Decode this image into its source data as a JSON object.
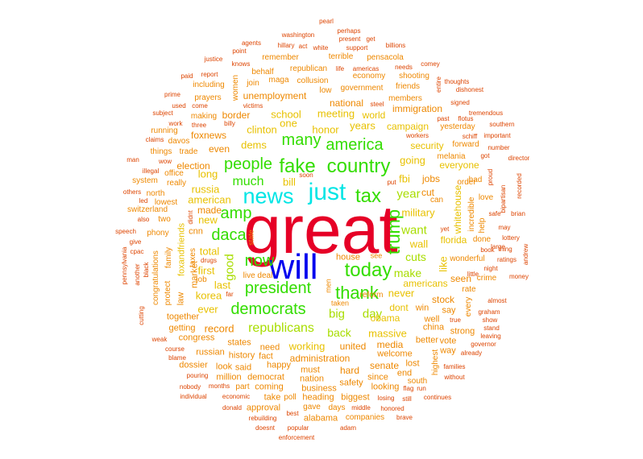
{
  "colors": {
    "red": "#e60026",
    "blue": "#0000ee",
    "cyan": "#00e5e5",
    "green": "#33dd00",
    "yellow_green": "#a8dd00",
    "gold": "#e8c100",
    "orange": "#ee8800",
    "dark_orange": "#dd4400"
  },
  "words": [
    {
      "text": "great",
      "tier": "red"
    },
    {
      "text": "will",
      "tier": "blue"
    },
    {
      "text": "news",
      "tier": "cyan"
    },
    {
      "text": "just",
      "tier": "cyan"
    },
    {
      "text": "fake",
      "tier": "green"
    },
    {
      "text": "country",
      "tier": "green"
    },
    {
      "text": "today",
      "tier": "green"
    },
    {
      "text": "tax",
      "tier": "green"
    },
    {
      "text": "thank",
      "tier": "green"
    },
    {
      "text": "trump",
      "tier": "green"
    },
    {
      "text": "democrats",
      "tier": "green"
    },
    {
      "text": "president",
      "tier": "green"
    },
    {
      "text": "america",
      "tier": "green"
    },
    {
      "text": "people",
      "tier": "green"
    },
    {
      "text": "many",
      "tier": "green"
    },
    {
      "text": "amp",
      "tier": "green"
    },
    {
      "text": "daca",
      "tier": "green"
    },
    {
      "text": "now",
      "tier": "green"
    },
    {
      "text": "much",
      "tier": "green"
    },
    {
      "text": "year",
      "tier": "yellow_green"
    },
    {
      "text": "big",
      "tier": "yellow_green"
    },
    {
      "text": "good",
      "tier": "yellow_green"
    },
    {
      "text": "want",
      "tier": "yellow_green"
    },
    {
      "text": "day",
      "tier": "yellow_green"
    },
    {
      "text": "make",
      "tier": "yellow_green"
    },
    {
      "text": "republicans",
      "tier": "yellow_green"
    },
    {
      "text": "cuts",
      "tier": "yellow_green"
    },
    {
      "text": "back",
      "tier": "yellow_green"
    },
    {
      "text": "military",
      "tier": "gold"
    },
    {
      "text": "working",
      "tier": "gold"
    },
    {
      "text": "massive",
      "tier": "gold"
    },
    {
      "text": "honor",
      "tier": "gold"
    },
    {
      "text": "dems",
      "tier": "gold"
    },
    {
      "text": "one",
      "tier": "gold"
    },
    {
      "text": "bill",
      "tier": "gold"
    },
    {
      "text": "fbi",
      "tier": "gold"
    },
    {
      "text": "going",
      "tier": "gold"
    },
    {
      "text": "jobs",
      "tier": "orange"
    },
    {
      "text": "cut",
      "tier": "orange"
    },
    {
      "text": "never",
      "tier": "gold"
    },
    {
      "text": "wall",
      "tier": "gold"
    },
    {
      "text": "like",
      "tier": "gold"
    },
    {
      "text": "florida",
      "tier": "gold"
    },
    {
      "text": "americans",
      "tier": "gold"
    },
    {
      "text": "school",
      "tier": "gold"
    },
    {
      "text": "meeting",
      "tier": "gold"
    },
    {
      "text": "clinton",
      "tier": "gold"
    },
    {
      "text": "years",
      "tier": "gold"
    },
    {
      "text": "world",
      "tier": "gold"
    },
    {
      "text": "campaign",
      "tier": "gold"
    },
    {
      "text": "security",
      "tier": "gold"
    },
    {
      "text": "everyone",
      "tier": "gold"
    },
    {
      "text": "american",
      "tier": "gold"
    },
    {
      "text": "long",
      "tier": "gold"
    },
    {
      "text": "russia",
      "tier": "gold"
    },
    {
      "text": "total",
      "tier": "gold"
    },
    {
      "text": "first",
      "tier": "gold"
    },
    {
      "text": "last",
      "tier": "gold"
    },
    {
      "text": "new",
      "tier": "gold"
    },
    {
      "text": "korea",
      "tier": "gold"
    },
    {
      "text": "ever",
      "tier": "gold"
    },
    {
      "text": "record",
      "tier": "orange"
    },
    {
      "text": "obama",
      "tier": "gold"
    },
    {
      "text": "dont",
      "tier": "gold"
    },
    {
      "text": "whitehouse",
      "tier": "gold"
    },
    {
      "text": "unemployment",
      "tier": "orange"
    },
    {
      "text": "national",
      "tier": "orange"
    },
    {
      "text": "immigration",
      "tier": "orange"
    },
    {
      "text": "foxnews",
      "tier": "orange"
    },
    {
      "text": "election",
      "tier": "orange"
    },
    {
      "text": "even",
      "tier": "orange"
    },
    {
      "text": "border",
      "tier": "orange"
    },
    {
      "text": "made",
      "tier": "orange"
    },
    {
      "text": "foxandfriends",
      "tier": "gold"
    },
    {
      "text": "market",
      "tier": "orange"
    },
    {
      "text": "house",
      "tier": "orange"
    },
    {
      "text": "reform",
      "tier": "orange"
    },
    {
      "text": "live deal",
      "tier": "orange"
    },
    {
      "text": "united",
      "tier": "orange"
    },
    {
      "text": "administration",
      "tier": "orange"
    },
    {
      "text": "states",
      "tier": "orange"
    },
    {
      "text": "need",
      "tier": "orange"
    },
    {
      "text": "happy",
      "tier": "orange"
    },
    {
      "text": "media",
      "tier": "orange"
    },
    {
      "text": "welcome",
      "tier": "orange"
    },
    {
      "text": "senate",
      "tier": "orange"
    },
    {
      "text": "stock",
      "tier": "orange"
    },
    {
      "text": "seen",
      "tier": "orange"
    },
    {
      "text": "say",
      "tier": "orange"
    },
    {
      "text": "win",
      "tier": "orange"
    },
    {
      "text": "well",
      "tier": "orange"
    },
    {
      "text": "china",
      "tier": "orange"
    },
    {
      "text": "strong",
      "tier": "orange"
    },
    {
      "text": "better",
      "tier": "orange"
    },
    {
      "text": "vote",
      "tier": "orange"
    },
    {
      "text": "way",
      "tier": "orange"
    },
    {
      "text": "hard",
      "tier": "orange"
    },
    {
      "text": "must",
      "tier": "orange"
    },
    {
      "text": "nation",
      "tier": "orange"
    },
    {
      "text": "safety",
      "tier": "orange"
    },
    {
      "text": "since",
      "tier": "orange"
    },
    {
      "text": "looking",
      "tier": "orange"
    },
    {
      "text": "end",
      "tier": "orange"
    },
    {
      "text": "lost",
      "tier": "orange"
    },
    {
      "text": "history",
      "tier": "orange"
    },
    {
      "text": "fact",
      "tier": "orange"
    },
    {
      "text": "said",
      "tier": "orange"
    },
    {
      "text": "democrat",
      "tier": "orange"
    },
    {
      "text": "look",
      "tier": "orange"
    },
    {
      "text": "million",
      "tier": "orange"
    },
    {
      "text": "coming",
      "tier": "orange"
    },
    {
      "text": "part",
      "tier": "orange"
    },
    {
      "text": "business",
      "tier": "orange"
    },
    {
      "text": "heading",
      "tier": "orange"
    },
    {
      "text": "biggest",
      "tier": "orange"
    },
    {
      "text": "take",
      "tier": "orange"
    },
    {
      "text": "poll",
      "tier": "orange"
    },
    {
      "text": "approval",
      "tier": "orange"
    },
    {
      "text": "alabama",
      "tier": "orange"
    },
    {
      "text": "gave",
      "tier": "orange"
    },
    {
      "text": "days",
      "tier": "orange"
    },
    {
      "text": "companies",
      "tier": "orange"
    },
    {
      "text": "getting",
      "tier": "orange"
    },
    {
      "text": "congress",
      "tier": "orange"
    },
    {
      "text": "russian",
      "tier": "orange"
    },
    {
      "text": "together",
      "tier": "orange"
    },
    {
      "text": "dossier",
      "tier": "orange"
    },
    {
      "text": "law",
      "tier": "orange"
    },
    {
      "text": "job",
      "tier": "orange"
    },
    {
      "text": "cnn",
      "tier": "orange"
    },
    {
      "text": "protect",
      "tier": "orange"
    },
    {
      "text": "family",
      "tier": "orange"
    },
    {
      "text": "taxes",
      "tier": "orange"
    },
    {
      "text": "congratulations",
      "tier": "orange"
    },
    {
      "text": "two",
      "tier": "orange"
    },
    {
      "text": "phony",
      "tier": "orange"
    },
    {
      "text": "switzerland",
      "tier": "orange"
    },
    {
      "text": "lowest",
      "tier": "orange"
    },
    {
      "text": "really",
      "tier": "orange"
    },
    {
      "text": "office",
      "tier": "orange"
    },
    {
      "text": "system",
      "tier": "orange"
    },
    {
      "text": "north",
      "tier": "orange"
    },
    {
      "text": "trade",
      "tier": "orange"
    },
    {
      "text": "things",
      "tier": "orange"
    },
    {
      "text": "davos",
      "tier": "orange"
    },
    {
      "text": "running",
      "tier": "orange"
    },
    {
      "text": "making",
      "tier": "orange"
    },
    {
      "text": "prayers",
      "tier": "orange"
    },
    {
      "text": "including",
      "tier": "orange"
    },
    {
      "text": "maga",
      "tier": "orange"
    },
    {
      "text": "collusion",
      "tier": "orange"
    },
    {
      "text": "join",
      "tier": "orange"
    },
    {
      "text": "behalf",
      "tier": "orange"
    },
    {
      "text": "remember",
      "tier": "orange"
    },
    {
      "text": "republican",
      "tier": "orange"
    },
    {
      "text": "terrible",
      "tier": "orange"
    },
    {
      "text": "pensacola",
      "tier": "orange"
    },
    {
      "text": "economy",
      "tier": "orange"
    },
    {
      "text": "government",
      "tier": "orange"
    },
    {
      "text": "shooting",
      "tier": "orange"
    },
    {
      "text": "friends",
      "tier": "orange"
    },
    {
      "text": "members",
      "tier": "orange"
    },
    {
      "text": "low",
      "tier": "orange"
    },
    {
      "text": "women",
      "tier": "orange"
    },
    {
      "text": "order",
      "tier": "orange"
    },
    {
      "text": "forward",
      "tier": "orange"
    },
    {
      "text": "yesterday",
      "tier": "orange"
    },
    {
      "text": "wonderful",
      "tier": "orange"
    },
    {
      "text": "done",
      "tier": "orange"
    },
    {
      "text": "crime",
      "tier": "orange"
    },
    {
      "text": "rate",
      "tier": "orange"
    },
    {
      "text": "incredible",
      "tier": "orange"
    },
    {
      "text": "help",
      "tier": "orange"
    },
    {
      "text": "love",
      "tier": "orange"
    },
    {
      "text": "bad",
      "tier": "orange"
    },
    {
      "text": "can",
      "tier": "orange"
    },
    {
      "text": "melania",
      "tier": "orange"
    },
    {
      "text": "highest",
      "tier": "orange"
    },
    {
      "text": "every",
      "tier": "orange"
    },
    {
      "text": "south",
      "tier": "orange"
    },
    {
      "text": "state",
      "tier": "orange"
    },
    {
      "text": "see",
      "tier": "orange"
    },
    {
      "text": "men",
      "tier": "orange"
    },
    {
      "text": "taken",
      "tier": "orange"
    },
    {
      "text": "soon",
      "tier": "dark_orange"
    },
    {
      "text": "put",
      "tier": "dark_orange"
    },
    {
      "text": "pearl",
      "tier": "dark_orange"
    },
    {
      "text": "perhaps",
      "tier": "dark_orange"
    },
    {
      "text": "present",
      "tier": "dark_orange"
    },
    {
      "text": "get",
      "tier": "dark_orange"
    },
    {
      "text": "washington",
      "tier": "dark_orange"
    },
    {
      "text": "billions",
      "tier": "dark_orange"
    },
    {
      "text": "agents",
      "tier": "dark_orange"
    },
    {
      "text": "hillary",
      "tier": "dark_orange"
    },
    {
      "text": "act",
      "tier": "dark_orange"
    },
    {
      "text": "white",
      "tier": "dark_orange"
    },
    {
      "text": "support",
      "tier": "dark_orange"
    },
    {
      "text": "point",
      "tier": "dark_orange"
    },
    {
      "text": "justice",
      "tier": "dark_orange"
    },
    {
      "text": "knows",
      "tier": "dark_orange"
    },
    {
      "text": "comey",
      "tier": "dark_orange"
    },
    {
      "text": "life",
      "tier": "dark_orange"
    },
    {
      "text": "americas",
      "tier": "dark_orange"
    },
    {
      "text": "needs",
      "tier": "dark_orange"
    },
    {
      "text": "paid",
      "tier": "dark_orange"
    },
    {
      "text": "report",
      "tier": "dark_orange"
    },
    {
      "text": "entire",
      "tier": "dark_orange"
    },
    {
      "text": "thoughts",
      "tier": "dark_orange"
    },
    {
      "text": "dishonest",
      "tier": "dark_orange"
    },
    {
      "text": "prime",
      "tier": "dark_orange"
    },
    {
      "text": "used",
      "tier": "dark_orange"
    },
    {
      "text": "come",
      "tier": "dark_orange"
    },
    {
      "text": "victims",
      "tier": "dark_orange"
    },
    {
      "text": "steel",
      "tier": "dark_orange"
    },
    {
      "text": "signed",
      "tier": "dark_orange"
    },
    {
      "text": "subject",
      "tier": "dark_orange"
    },
    {
      "text": "tremendous",
      "tier": "dark_orange"
    },
    {
      "text": "past",
      "tier": "dark_orange"
    },
    {
      "text": "flotus",
      "tier": "dark_orange"
    },
    {
      "text": "work",
      "tier": "dark_orange"
    },
    {
      "text": "three",
      "tier": "dark_orange"
    },
    {
      "text": "billy",
      "tier": "dark_orange"
    },
    {
      "text": "southern",
      "tier": "dark_orange"
    },
    {
      "text": "claims",
      "tier": "dark_orange"
    },
    {
      "text": "schiff",
      "tier": "dark_orange"
    },
    {
      "text": "important",
      "tier": "dark_orange"
    },
    {
      "text": "workers",
      "tier": "dark_orange"
    },
    {
      "text": "number",
      "tier": "dark_orange"
    },
    {
      "text": "wow",
      "tier": "dark_orange"
    },
    {
      "text": "got",
      "tier": "dark_orange"
    },
    {
      "text": "director",
      "tier": "dark_orange"
    },
    {
      "text": "man",
      "tier": "dark_orange"
    },
    {
      "text": "illegal",
      "tier": "dark_orange"
    },
    {
      "text": "proud",
      "tier": "dark_orange"
    },
    {
      "text": "others",
      "tier": "dark_orange"
    },
    {
      "text": "bipartisan",
      "tier": "dark_orange"
    },
    {
      "text": "recorded",
      "tier": "dark_orange"
    },
    {
      "text": "led",
      "tier": "dark_orange"
    },
    {
      "text": "didnt",
      "tier": "dark_orange"
    },
    {
      "text": "also",
      "tier": "dark_orange"
    },
    {
      "text": "safe",
      "tier": "dark_orange"
    },
    {
      "text": "brian",
      "tier": "dark_orange"
    },
    {
      "text": "yet",
      "tier": "dark_orange"
    },
    {
      "text": "lottery",
      "tier": "dark_orange"
    },
    {
      "text": "may",
      "tier": "dark_orange"
    },
    {
      "text": "speech",
      "tier": "dark_orange"
    },
    {
      "text": "give",
      "tier": "dark_orange"
    },
    {
      "text": "cpac",
      "tier": "dark_orange"
    },
    {
      "text": "drugs",
      "tier": "dark_orange"
    },
    {
      "text": "andrew",
      "tier": "dark_orange"
    },
    {
      "text": "pennsylvania",
      "tier": "dark_orange"
    },
    {
      "text": "black",
      "tier": "dark_orange"
    },
    {
      "text": "another",
      "tier": "dark_orange"
    },
    {
      "text": "ratings",
      "tier": "dark_orange"
    },
    {
      "text": "little",
      "tier": "dark_orange"
    },
    {
      "text": "night",
      "tier": "dark_orange"
    },
    {
      "text": "book",
      "tier": "dark_orange"
    },
    {
      "text": "thing",
      "tier": "dark_orange"
    },
    {
      "text": "large",
      "tier": "dark_orange"
    },
    {
      "text": "money",
      "tier": "dark_orange"
    },
    {
      "text": "far",
      "tier": "dark_orange"
    },
    {
      "text": "almost",
      "tier": "dark_orange"
    },
    {
      "text": "graham",
      "tier": "dark_orange"
    },
    {
      "text": "cutting",
      "tier": "dark_orange"
    },
    {
      "text": "true",
      "tier": "dark_orange"
    },
    {
      "text": "show",
      "tier": "dark_orange"
    },
    {
      "text": "stand",
      "tier": "dark_orange"
    },
    {
      "text": "weak",
      "tier": "dark_orange"
    },
    {
      "text": "leaving",
      "tier": "dark_orange"
    },
    {
      "text": "course",
      "tier": "dark_orange"
    },
    {
      "text": "governor",
      "tier": "dark_orange"
    },
    {
      "text": "blame",
      "tier": "dark_orange"
    },
    {
      "text": "already",
      "tier": "dark_orange"
    },
    {
      "text": "families",
      "tier": "dark_orange"
    },
    {
      "text": "pouring",
      "tier": "dark_orange"
    },
    {
      "text": "without",
      "tier": "dark_orange"
    },
    {
      "text": "nobody",
      "tier": "dark_orange"
    },
    {
      "text": "months",
      "tier": "dark_orange"
    },
    {
      "text": "individual",
      "tier": "dark_orange"
    },
    {
      "text": "economic",
      "tier": "dark_orange"
    },
    {
      "text": "flag",
      "tier": "dark_orange"
    },
    {
      "text": "run",
      "tier": "dark_orange"
    },
    {
      "text": "losing",
      "tier": "dark_orange"
    },
    {
      "text": "still",
      "tier": "dark_orange"
    },
    {
      "text": "continues",
      "tier": "dark_orange"
    },
    {
      "text": "donald",
      "tier": "dark_orange"
    },
    {
      "text": "honored",
      "tier": "dark_orange"
    },
    {
      "text": "rebuilding",
      "tier": "dark_orange"
    },
    {
      "text": "best",
      "tier": "dark_orange"
    },
    {
      "text": "middle",
      "tier": "dark_orange"
    },
    {
      "text": "brave",
      "tier": "dark_orange"
    },
    {
      "text": "doesnt",
      "tier": "dark_orange"
    },
    {
      "text": "popular",
      "tier": "dark_orange"
    },
    {
      "text": "adam",
      "tier": "dark_orange"
    },
    {
      "text": "enforcement",
      "tier": "dark_orange"
    }
  ]
}
